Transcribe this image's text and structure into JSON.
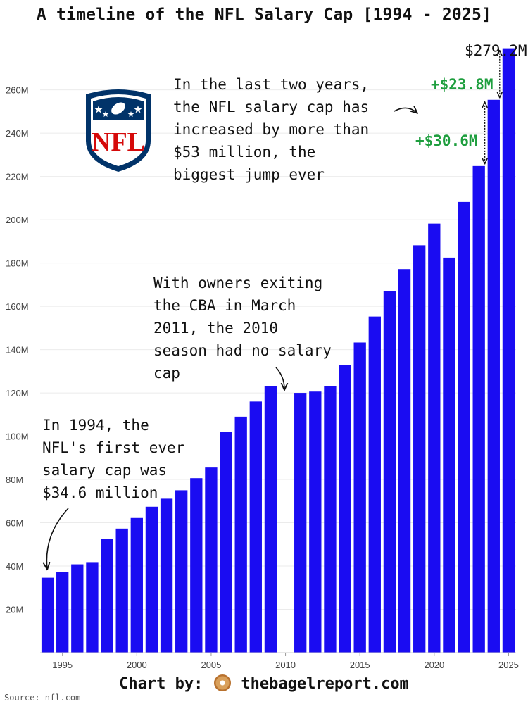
{
  "chart_data": {
    "type": "bar",
    "title": "A timeline of the NFL Salary Cap [1994 - 2025]",
    "xlabel": "",
    "ylabel": "",
    "ylim": [
      0,
      282
    ],
    "yticks": [
      "20M",
      "40M",
      "60M",
      "80M",
      "100M",
      "120M",
      "140M",
      "160M",
      "180M",
      "200M",
      "220M",
      "240M",
      "260M"
    ],
    "ytick_values": [
      20,
      40,
      60,
      80,
      100,
      120,
      140,
      160,
      180,
      200,
      220,
      240,
      260
    ],
    "xticks": [
      "1995",
      "2000",
      "2005",
      "2010",
      "2015",
      "2020",
      "2025"
    ],
    "xtick_values": [
      1995,
      2000,
      2005,
      2010,
      2015,
      2020,
      2025
    ],
    "categories": [
      1994,
      1995,
      1996,
      1997,
      1998,
      1999,
      2000,
      2001,
      2002,
      2003,
      2004,
      2005,
      2006,
      2007,
      2008,
      2009,
      2010,
      2011,
      2012,
      2013,
      2014,
      2015,
      2016,
      2017,
      2018,
      2019,
      2020,
      2021,
      2022,
      2023,
      2024,
      2025
    ],
    "values": [
      34.6,
      37.1,
      40.8,
      41.5,
      52.4,
      57.3,
      62.2,
      67.4,
      71.1,
      75.0,
      80.6,
      85.5,
      102.0,
      109.0,
      116.0,
      123.0,
      null,
      120.0,
      120.6,
      123.0,
      133.0,
      143.28,
      155.27,
      167.0,
      177.2,
      188.2,
      198.2,
      182.5,
      208.2,
      224.8,
      255.4,
      279.2
    ],
    "bar_color": "#1a0cf2",
    "annotations": {
      "peak_label": "$279.2M",
      "delta_2025": "+$23.8M",
      "delta_2024": "+$30.6M",
      "recent_jump": "In the last two years,\nthe NFL salary cap has\nincreased by more than\n$53 million, the\nbiggest jump ever",
      "no_cap_2010": "With owners exiting\nthe CBA in March\n2011, the 2010\nseason had no salary\ncap",
      "first_cap_1994": "In 1994, the\nNFL's first ever\nsalary cap was\n$34.6 million"
    }
  },
  "footer": {
    "credit_prefix": "Chart by:",
    "credit_site": "thebagelreport.com",
    "source": "Source: nfl.com"
  },
  "logo_text": "NFL",
  "colors": {
    "accent_green": "#1e9e3e",
    "nfl_navy": "#013369",
    "nfl_red": "#d50a0a"
  }
}
